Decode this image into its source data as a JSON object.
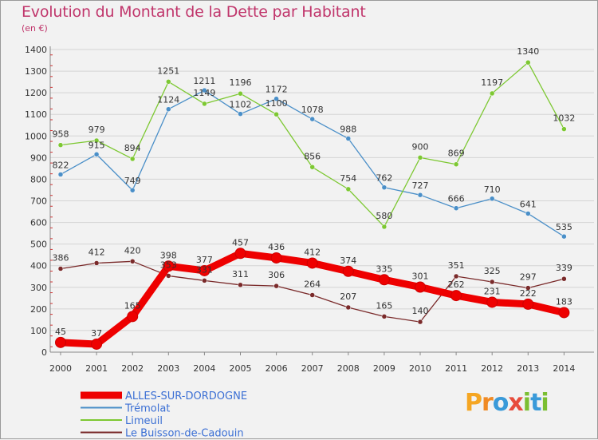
{
  "header": {
    "title": "Evolution du Montant de la Dette par Habitant",
    "unit": "(en €)"
  },
  "logo": {
    "text": "Proxiti",
    "letters": [
      "P",
      "r",
      "o",
      "x",
      "i",
      "t",
      "i"
    ],
    "colors": [
      "#f5a623",
      "#f08a24",
      "#3a9ad9",
      "#e74c3c",
      "#7bbf32",
      "#3a9ad9",
      "#7bbf32"
    ]
  },
  "chart_data": {
    "type": "line",
    "x": [
      "2000",
      "2001",
      "2002",
      "2003",
      "2004",
      "2005",
      "2006",
      "2007",
      "2008",
      "2009",
      "2010",
      "2011",
      "2012",
      "2013",
      "2014"
    ],
    "ylim": [
      0,
      1400
    ],
    "yticks": [
      0,
      100,
      200,
      300,
      400,
      500,
      600,
      700,
      800,
      900,
      1000,
      1100,
      1200,
      1300,
      1400
    ],
    "grid": "horizontal",
    "legend_position": "bottom-left",
    "series": [
      {
        "name": "Trémolat",
        "color": "#4a8fc8",
        "values": [
          822,
          915,
          749,
          1124,
          1211,
          1102,
          1172,
          1078,
          988,
          762,
          727,
          666,
          710,
          641,
          535
        ]
      },
      {
        "name": "Limeuil",
        "color": "#7dc832",
        "values": [
          958,
          979,
          894,
          1251,
          1149,
          1196,
          1100,
          856,
          754,
          580,
          900,
          869,
          1197,
          1340,
          1032
        ]
      },
      {
        "name": "Le Buisson-de-Cadouin",
        "color": "#7a2a2a",
        "values": [
          386,
          412,
          420,
          353,
          331,
          311,
          306,
          264,
          207,
          165,
          140,
          351,
          325,
          297,
          339
        ]
      },
      {
        "name": "ALLES-SUR-DORDOGNE",
        "color": "#ee0000",
        "values": [
          45,
          37,
          165,
          398,
          377,
          457,
          436,
          412,
          374,
          335,
          301,
          262,
          231,
          222,
          183
        ]
      }
    ],
    "labels": [
      {
        "series": "Trémolat",
        "values": [
          "822",
          "915",
          "749",
          "1124",
          "1211",
          "1102",
          "1172",
          "1078",
          "988",
          "762",
          "727",
          "666",
          "710",
          "641",
          "535"
        ]
      },
      {
        "series": "Limeuil",
        "values": [
          "958",
          "979",
          "894",
          "1251",
          "1149",
          "1196",
          "1100",
          "856",
          "754",
          "580",
          "900",
          "869",
          "1197",
          "1340",
          "1032"
        ]
      },
      {
        "series": "Le Buisson-de-Cadouin",
        "values": [
          "386",
          "412",
          "420",
          "353",
          "331",
          "311",
          "306",
          "264",
          "207",
          "165",
          "140",
          "351",
          "325",
          "297",
          "339"
        ]
      },
      {
        "series": "ALLES-SUR-DORDOGNE",
        "values": [
          "45",
          "37",
          "165",
          "398",
          "377",
          "457",
          "436",
          "412",
          "374",
          "335",
          "301",
          "262",
          "231",
          "222",
          "183"
        ]
      }
    ],
    "legend": [
      {
        "name": "ALLES-SUR-DORDOGNE",
        "color": "#ee0000"
      },
      {
        "name": "Trémolat",
        "color": "#4a8fc8"
      },
      {
        "name": "Limeuil",
        "color": "#7dc832"
      },
      {
        "name": "Le Buisson-de-Cadouin",
        "color": "#7a2a2a"
      }
    ]
  }
}
